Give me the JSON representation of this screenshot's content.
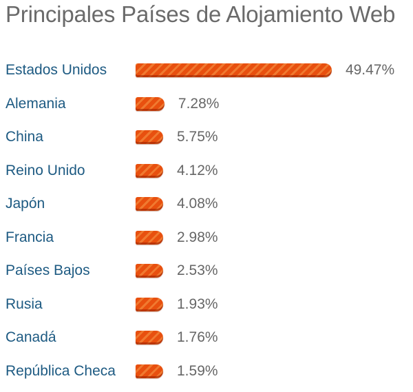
{
  "chart_data": {
    "type": "bar",
    "orientation": "horizontal",
    "title": "Principales Países de Alojamiento Web",
    "categories": [
      "Estados Unidos",
      "Alemania",
      "China",
      "Reino Unido",
      "Japón",
      "Francia",
      "Países Bajos",
      "Rusia",
      "Canadá",
      "República Checa"
    ],
    "values": [
      49.47,
      7.28,
      5.75,
      4.12,
      4.08,
      2.98,
      2.53,
      1.93,
      1.76,
      1.59
    ],
    "value_labels": [
      "49.47%",
      "7.28%",
      "5.75%",
      "4.12%",
      "4.08%",
      "2.98%",
      "2.53%",
      "1.93%",
      "1.76%",
      "1.59%"
    ],
    "xlabel": "",
    "ylabel": "",
    "grid": false,
    "legend": "none",
    "colors": {
      "bar": "#e2470f",
      "category_text": "#1d5a82",
      "value_text": "#666666",
      "title_text": "#6a6a6a"
    }
  }
}
